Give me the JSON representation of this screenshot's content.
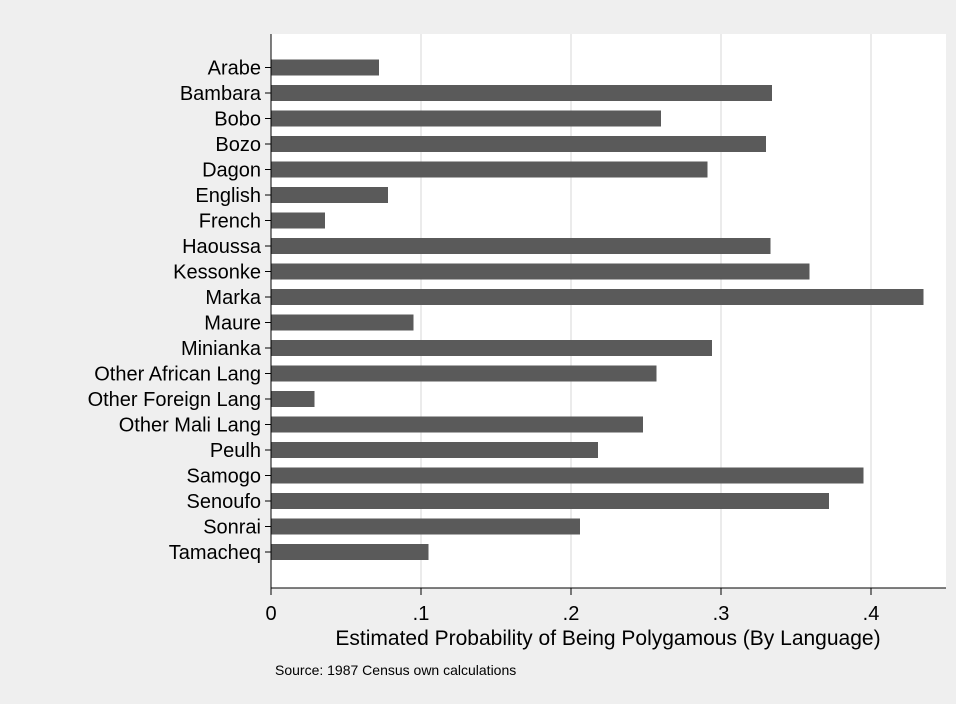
{
  "chart_data": {
    "type": "bar",
    "orientation": "horizontal",
    "categories": [
      "Arabe",
      "Bambara",
      "Bobo",
      "Bozo",
      "Dagon",
      "English",
      "French",
      "Haoussa",
      "Kessonke",
      "Marka",
      "Maure",
      "Minianka",
      "Other African Lang",
      "Other Foreign Lang",
      "Other Mali Lang",
      "Peulh",
      "Samogo",
      "Senoufo",
      "Sonrai",
      "Tamacheq"
    ],
    "values": [
      0.072,
      0.334,
      0.26,
      0.33,
      0.291,
      0.078,
      0.036,
      0.333,
      0.359,
      0.435,
      0.095,
      0.294,
      0.257,
      0.029,
      0.248,
      0.218,
      0.395,
      0.372,
      0.206,
      0.105
    ],
    "xlim": [
      0,
      0.45
    ],
    "xticks": [
      0,
      0.1,
      0.2,
      0.3,
      0.4
    ],
    "xtick_labels": [
      "0",
      ".1",
      ".2",
      ".3",
      ".4"
    ],
    "xlabel": "Estimated Probability of Being Polygamous (By Language)",
    "ylabel": "",
    "title": "",
    "note": "Source: 1987 Census own calculations",
    "grid": true,
    "legend": "none",
    "colors": {
      "bar": "#5a5a5a",
      "outer_background": "#efefef",
      "plot_background": "#ffffff",
      "grid": "#e6e6e6",
      "axis": "#000000"
    }
  }
}
